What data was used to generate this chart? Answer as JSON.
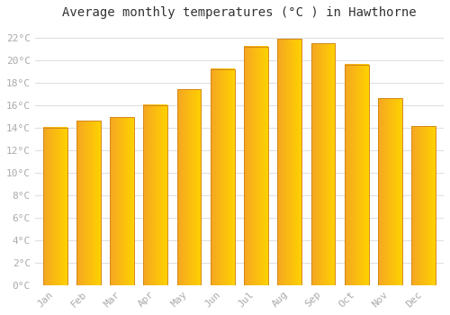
{
  "title": "Average monthly temperatures (°C ) in Hawthorne",
  "months": [
    "Jan",
    "Feb",
    "Mar",
    "Apr",
    "May",
    "Jun",
    "Jul",
    "Aug",
    "Sep",
    "Oct",
    "Nov",
    "Dec"
  ],
  "values": [
    14.0,
    14.6,
    14.9,
    16.0,
    17.4,
    19.2,
    21.2,
    21.9,
    21.5,
    19.6,
    16.6,
    14.1
  ],
  "bar_color_left": "#F5A623",
  "bar_color_right": "#FFD000",
  "bar_color_top": "#FFD000",
  "bar_color_border": "#D4881A",
  "ylim": [
    0,
    23
  ],
  "yticks": [
    0,
    2,
    4,
    6,
    8,
    10,
    12,
    14,
    16,
    18,
    20,
    22
  ],
  "ytick_labels": [
    "0°C",
    "2°C",
    "4°C",
    "6°C",
    "8°C",
    "10°C",
    "12°C",
    "14°C",
    "16°C",
    "18°C",
    "20°C",
    "22°C"
  ],
  "background_color": "#FFFFFF",
  "grid_color": "#E0E0E0",
  "title_fontsize": 10,
  "tick_fontsize": 8,
  "tick_color": "#AAAAAA",
  "font_family": "monospace"
}
